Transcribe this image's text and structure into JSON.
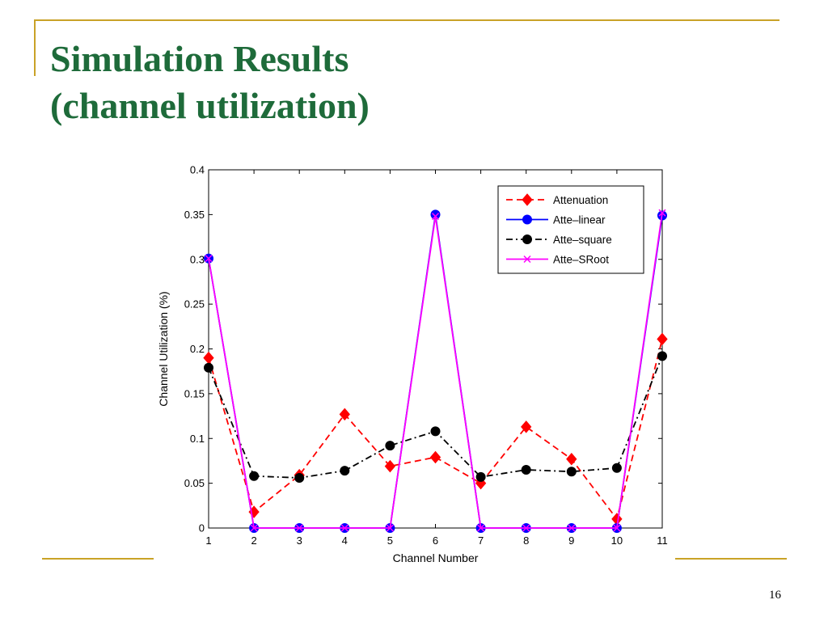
{
  "slide": {
    "title_line1": "Simulation Results",
    "title_line2": "(channel utilization)",
    "page_number": "16"
  },
  "colors": {
    "title": "#1e6b3a",
    "accent_rule": "#c9a227"
  },
  "chart_data": {
    "type": "line",
    "title": "",
    "xlabel": "Channel Number",
    "ylabel": "Channel Utilization (%)",
    "x": [
      1,
      2,
      3,
      4,
      5,
      6,
      7,
      8,
      9,
      10,
      11
    ],
    "xlim": [
      1,
      11
    ],
    "ylim": [
      0,
      0.4
    ],
    "xticks": [
      "1",
      "2",
      "3",
      "4",
      "5",
      "6",
      "7",
      "8",
      "9",
      "10",
      "11"
    ],
    "yticks": [
      "0",
      "0.05",
      "0.1",
      "0.15",
      "0.2",
      "0.25",
      "0.3",
      "0.35",
      "0.4"
    ],
    "grid": false,
    "legend_position": "top-right",
    "series": [
      {
        "name": "Attenuation",
        "color": "#ff0000",
        "line_style": "dashed",
        "marker": "diamond",
        "values": [
          0.19,
          0.018,
          0.059,
          0.127,
          0.069,
          0.079,
          0.05,
          0.113,
          0.077,
          0.01,
          0.211
        ]
      },
      {
        "name": "Atte–linear",
        "color": "#0000ff",
        "line_style": "solid",
        "marker": "circle",
        "values": [
          0.301,
          0,
          0,
          0,
          0,
          0.35,
          0,
          0,
          0,
          0,
          0.349
        ]
      },
      {
        "name": "Atte–square",
        "color": "#000000",
        "line_style": "dash-dot",
        "marker": "circle",
        "values": [
          0.179,
          0.058,
          0.056,
          0.064,
          0.092,
          0.108,
          0.057,
          0.065,
          0.063,
          0.067,
          0.192
        ]
      },
      {
        "name": "Atte–SRoot",
        "color": "#ff00ff",
        "line_style": "solid",
        "marker": "x",
        "values": [
          0.301,
          0,
          0,
          0,
          0,
          0.348,
          0,
          0,
          0,
          0,
          0.352
        ]
      }
    ]
  }
}
